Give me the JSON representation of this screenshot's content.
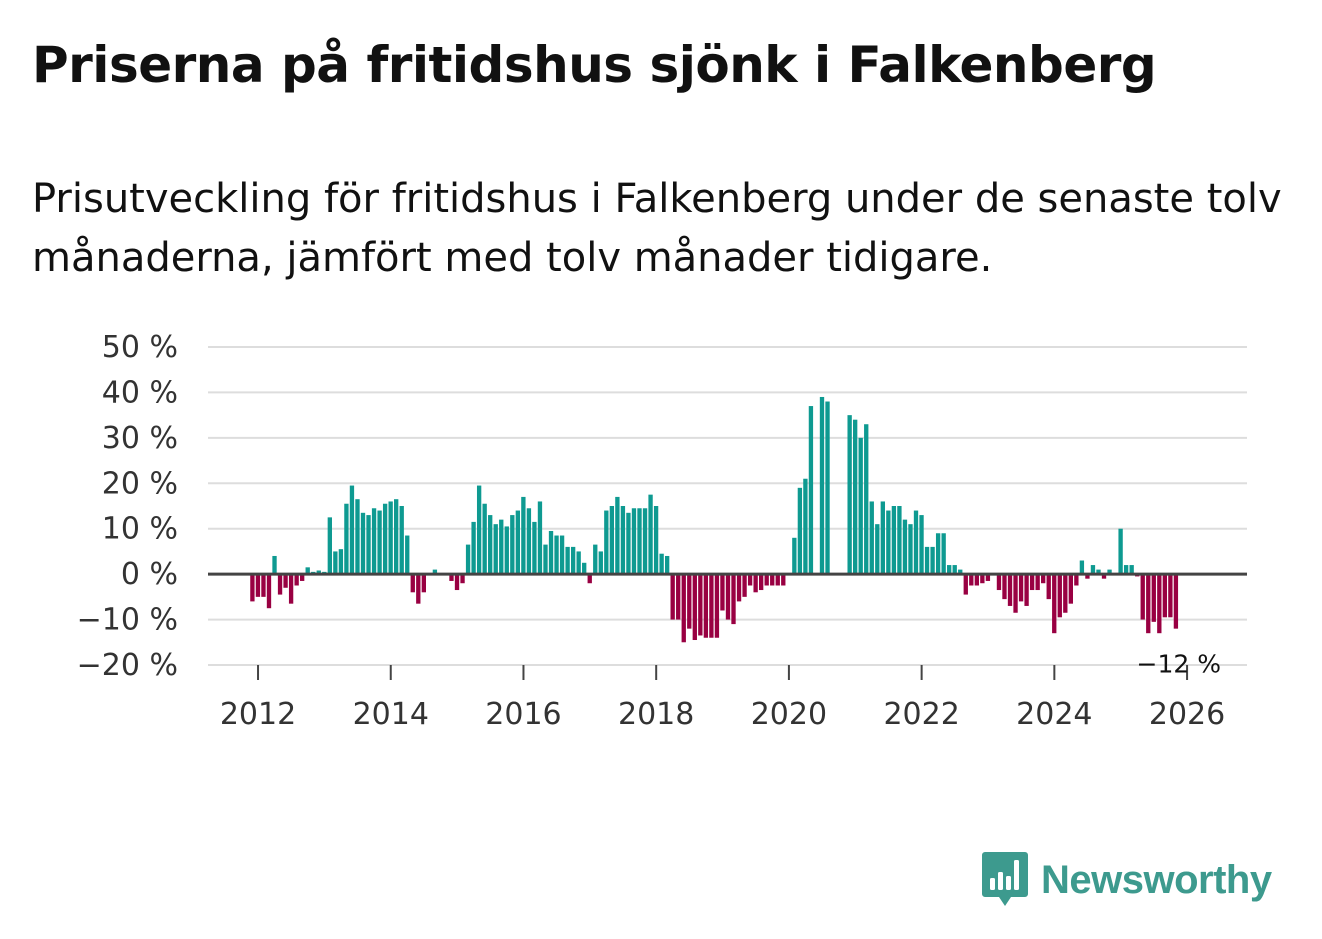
{
  "title": "Priserna på fritidshus sjönk i Falkenberg",
  "subtitle": "Prisutveckling för fritidshus i Falkenberg under de senaste tolv månaderna, jämfört med tolv månader tidigare.",
  "brand": "Newsworthy",
  "colors": {
    "positive": "#0e9a91",
    "negative": "#990042",
    "grid": "#dddddd",
    "zero_line": "#444444",
    "brand": "#3d9a8e"
  },
  "chart_data": {
    "type": "bar",
    "x_unit": "month",
    "x_start": "2011-12",
    "ylim": [
      -20,
      50
    ],
    "y_ticks": [
      50,
      40,
      30,
      20,
      10,
      0,
      -10,
      -20
    ],
    "y_tick_labels": [
      "50 %",
      "40 %",
      "30 %",
      "20 %",
      "10 %",
      "0 %",
      "−10 %",
      "−20 %"
    ],
    "x_ticks": [
      "2012",
      "2014",
      "2016",
      "2018",
      "2020",
      "2022",
      "2024",
      "2026"
    ],
    "grid": true,
    "values": [
      -6.0,
      -5.0,
      -5.0,
      -7.5,
      4.0,
      -4.5,
      -3.0,
      -6.5,
      -2.5,
      -1.5,
      1.5,
      0.5,
      0.8,
      0.5,
      12.5,
      5.0,
      5.5,
      15.5,
      19.5,
      16.5,
      13.5,
      13.0,
      14.5,
      14.0,
      15.5,
      16.0,
      16.5,
      15.0,
      8.5,
      -4.0,
      -6.5,
      -4.0,
      0.0,
      1.0,
      0.0,
      0.0,
      -1.5,
      -3.5,
      -2.0,
      6.5,
      11.5,
      19.5,
      15.5,
      13.0,
      11.0,
      12.0,
      10.5,
      13.0,
      14.0,
      17.0,
      14.5,
      11.5,
      16.0,
      6.5,
      9.5,
      8.5,
      8.5,
      6.0,
      6.0,
      5.0,
      2.5,
      -2.0,
      6.5,
      5.0,
      14.0,
      15.0,
      17.0,
      15.0,
      13.5,
      14.5,
      14.5,
      14.5,
      17.5,
      15.0,
      4.5,
      4.0,
      -10.0,
      -10.0,
      -15.0,
      -12.0,
      -14.5,
      -13.5,
      -14.0,
      -14.0,
      -14.0,
      -8.0,
      -10.0,
      -11.0,
      -6.0,
      -5.0,
      -2.5,
      -4.0,
      -3.5,
      -2.5,
      -2.5,
      -2.5,
      -2.5,
      0.0,
      8.0,
      19.0,
      21.0,
      37.0,
      0.0,
      39.0,
      38.0,
      0.0,
      0.0,
      0.0,
      35.0,
      34.0,
      30.0,
      33.0,
      16.0,
      11.0,
      16.0,
      14.0,
      15.0,
      15.0,
      12.0,
      11.0,
      14.0,
      13.0,
      6.0,
      6.0,
      9.0,
      9.0,
      2.0,
      2.0,
      1.0,
      -4.5,
      -2.5,
      -2.5,
      -2.0,
      -1.5,
      0.0,
      -3.5,
      -5.5,
      -7.0,
      -8.5,
      -6.0,
      -7.0,
      -3.5,
      -3.5,
      -2.0,
      -5.5,
      -13.0,
      -9.5,
      -8.5,
      -6.5,
      -2.5,
      3.0,
      -1.0,
      2.0,
      1.0,
      -1.0,
      1.0,
      0.0,
      10.0,
      2.0,
      2.0,
      -0.5,
      -10.0,
      -13.0,
      -10.5,
      -13.0,
      -9.5,
      -9.5,
      -12.0
    ],
    "annotation": {
      "label": "−12 %",
      "value": -12
    }
  }
}
